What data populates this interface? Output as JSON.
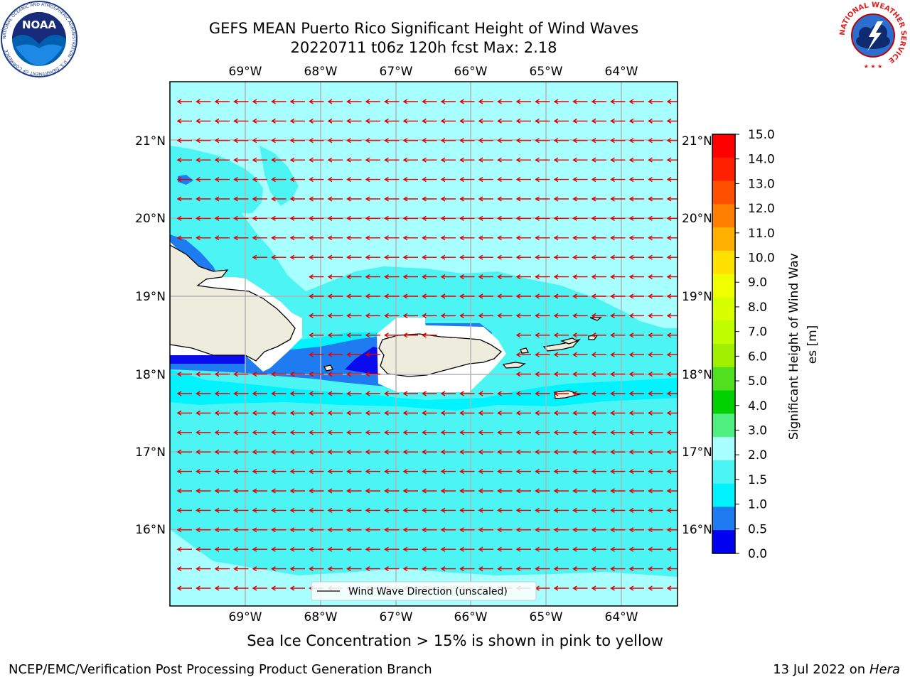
{
  "title": {
    "line1": "GEFS MEAN Puerto Rico Significant Height of Wind Waves",
    "line2": "20220711 t06z 120h fcst   Max: 2.18"
  },
  "map": {
    "lon_labels": [
      "69°W",
      "68°W",
      "67°W",
      "66°W",
      "65°W",
      "64°W"
    ],
    "lat_labels": [
      "21°N",
      "20°N",
      "19°N",
      "18°N",
      "17°N",
      "16°N"
    ],
    "legend_label": "Wind Wave Direction (unscaled)",
    "colors": {
      "ocean_main": "#4DF4F4",
      "ocean_light": "#A8FFFF",
      "band_1_0": "#00F3FF",
      "band_0_5": "#1F7BF0",
      "band_0_0": "#0B0BF0",
      "land": "#EEECDC",
      "arrow": "#E00000",
      "grid": "#B4B4B4"
    }
  },
  "colorbar": {
    "label": "Significant Height of Wind Waves [m]",
    "ticks": [
      "15.0",
      "14.0",
      "13.0",
      "12.0",
      "11.0",
      "10.0",
      "9.0",
      "8.0",
      "7.0",
      "6.0",
      "5.0",
      "4.0",
      "3.0",
      "2.0",
      "1.5",
      "1.0",
      "0.5",
      "0.0"
    ],
    "colors_top_to_bottom": [
      "#FF0000",
      "#FF2000",
      "#FF5000",
      "#FF8000",
      "#FFB000",
      "#FFE000",
      "#F0FF00",
      "#D8FF00",
      "#C0FF00",
      "#A0F000",
      "#50E020",
      "#00D000",
      "#50F080",
      "#A8FFFF",
      "#4DF4F4",
      "#00F3FF",
      "#1F7BF0",
      "#0000F0"
    ]
  },
  "footer": {
    "ice_note": "Sea Ice Concentration > 15% is shown in pink to yellow",
    "credit": "NCEP/EMC/Verification Post Processing Product Generation Branch",
    "date": "13 Jul 2022 on ",
    "machine": "Hera"
  },
  "logos": {
    "noaa_text": "NOAA",
    "noaa_ring": "NATIONAL OCEANIC AND ATMOSPHERIC ADMINISTRATION · U.S. DEPARTMENT OF COMMERCE",
    "nws_ring": "NATIONAL WEATHER SERVICE"
  }
}
